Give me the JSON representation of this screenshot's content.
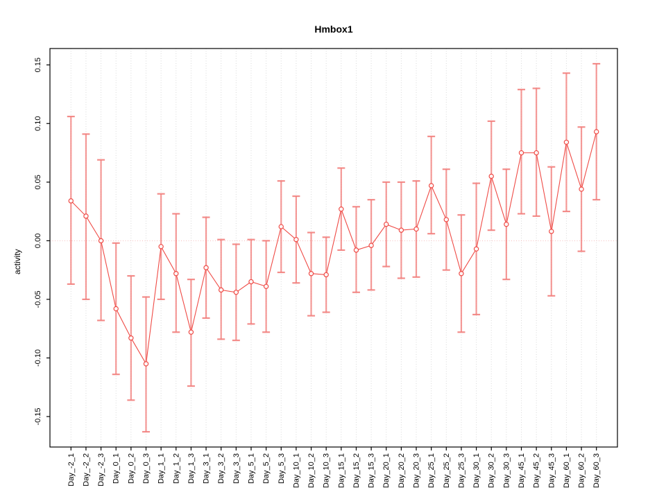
{
  "chart_data": {
    "type": "line",
    "title": "Hmbox1",
    "xlabel": "",
    "ylabel": "activity",
    "legend": "none",
    "grid": "vertical-dotted-per-category",
    "zero_line_dotted": true,
    "marker": "open-circle",
    "error_bars": true,
    "ylim": [
      -0.176,
      0.164
    ],
    "ytick_labels": [
      "-0.15",
      "-0.10",
      "-0.05",
      "0.00",
      "0.05",
      "0.10",
      "0.15"
    ],
    "ytick_values": [
      -0.15,
      -0.1,
      -0.05,
      0.0,
      0.05,
      0.1,
      0.15
    ],
    "categories": [
      "Day_-2_1",
      "Day_-2_2",
      "Day_-2_3",
      "Day_0_1",
      "Day_0_2",
      "Day_0_3",
      "Day_1_1",
      "Day_1_2",
      "Day_1_3",
      "Day_3_1",
      "Day_3_2",
      "Day_3_3",
      "Day_5_1",
      "Day_5_2",
      "Day_5_3",
      "Day_10_1",
      "Day_10_2",
      "Day_10_3",
      "Day_15_1",
      "Day_15_2",
      "Day_15_3",
      "Day_20_1",
      "Day_20_2",
      "Day_20_3",
      "Day_25_1",
      "Day_25_2",
      "Day_25_3",
      "Day_30_1",
      "Day_30_2",
      "Day_30_3",
      "Day_45_1",
      "Day_45_2",
      "Day_45_3",
      "Day_60_1",
      "Day_60_2",
      "Day_60_3"
    ],
    "series": [
      {
        "name": "activity",
        "values": [
          0.034,
          0.021,
          0.0,
          -0.058,
          -0.083,
          -0.105,
          -0.005,
          -0.028,
          -0.078,
          -0.023,
          -0.042,
          -0.044,
          -0.035,
          -0.039,
          0.012,
          0.001,
          -0.028,
          -0.029,
          0.027,
          -0.008,
          -0.004,
          0.014,
          0.009,
          0.01,
          0.047,
          0.018,
          -0.028,
          -0.007,
          0.055,
          0.014,
          0.075,
          0.075,
          0.008,
          0.084,
          0.044,
          0.093
        ],
        "error_low": [
          -0.037,
          -0.05,
          -0.068,
          -0.114,
          -0.136,
          -0.163,
          -0.05,
          -0.078,
          -0.124,
          -0.066,
          -0.084,
          -0.085,
          -0.071,
          -0.078,
          -0.027,
          -0.036,
          -0.064,
          -0.061,
          -0.008,
          -0.044,
          -0.042,
          -0.022,
          -0.032,
          -0.031,
          0.006,
          -0.025,
          -0.078,
          -0.063,
          0.009,
          -0.033,
          0.023,
          0.021,
          -0.047,
          0.025,
          -0.009,
          0.035
        ],
        "error_high": [
          0.106,
          0.091,
          0.069,
          -0.002,
          -0.03,
          -0.048,
          0.04,
          0.023,
          -0.033,
          0.02,
          0.001,
          -0.003,
          0.001,
          0.0,
          0.051,
          0.038,
          0.007,
          0.003,
          0.062,
          0.029,
          0.035,
          0.05,
          0.05,
          0.051,
          0.089,
          0.061,
          0.022,
          0.049,
          0.102,
          0.061,
          0.129,
          0.13,
          0.063,
          0.143,
          0.097,
          0.151
        ]
      }
    ],
    "colors": {
      "line": "#ef4a45",
      "marker": "#ef4a45",
      "error_bar": "#f2807d",
      "grid": "#d8d8d8",
      "zero_line": "#f5baba",
      "axis": "#000000"
    }
  }
}
